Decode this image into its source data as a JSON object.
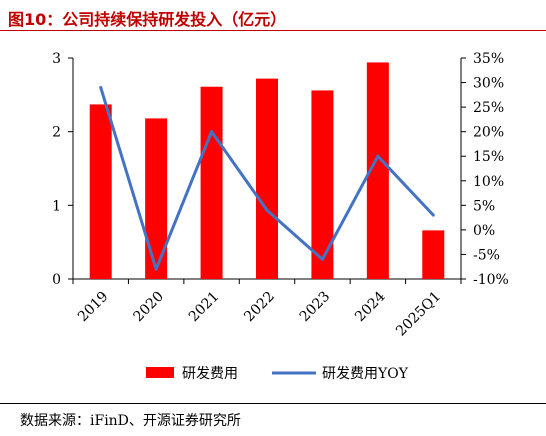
{
  "title": "图10：公司持续保持研发投入（亿元）",
  "source": "数据来源：iFinD、开源证券研究所",
  "colors": {
    "bar": "#ff0000",
    "line": "#4472c4",
    "title": "#c00000"
  },
  "chart_data": {
    "type": "bar+line",
    "categories": [
      "2019",
      "2020",
      "2021",
      "2022",
      "2023",
      "2024",
      "2025Q1"
    ],
    "series": [
      {
        "name": "研发费用",
        "type": "bar",
        "axis": "left",
        "values": [
          2.37,
          2.18,
          2.61,
          2.72,
          2.56,
          2.94,
          0.66
        ]
      },
      {
        "name": "研发费用YOY",
        "type": "line",
        "axis": "right",
        "values": [
          29,
          -8,
          20,
          4,
          -6,
          15,
          3
        ]
      }
    ],
    "y_left": {
      "min": 0,
      "max": 3,
      "ticks": [
        "0",
        "1",
        "2",
        "3"
      ]
    },
    "y_right": {
      "min": -10,
      "max": 35,
      "ticks": [
        "-10%",
        "-5%",
        "0%",
        "5%",
        "10%",
        "15%",
        "20%",
        "25%",
        "30%",
        "35%"
      ]
    },
    "grid": false,
    "legend_position": "bottom"
  }
}
